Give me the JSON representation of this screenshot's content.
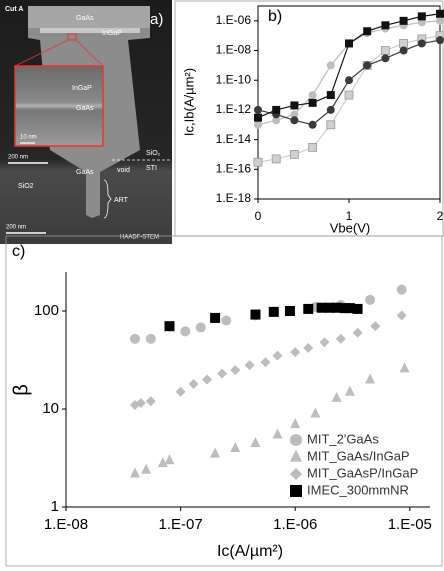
{
  "image_panel": {
    "labels": [
      "Cut A",
      "a)",
      "GaAs",
      "InGaP",
      "InGaP",
      "GaAs",
      "10 nm",
      "200 nm",
      "GaAs",
      "void",
      "SiO₂",
      "STI",
      "SiO2",
      "ART",
      "200 nm",
      "HAADF-STEM"
    ]
  },
  "chart_data": [
    {
      "type": "line",
      "panel_label": "b)",
      "x_label": "Vbe(V)",
      "y_label": "Ic,Ib(A/µm²)",
      "log_y": true,
      "x": [
        0,
        0.2,
        0.4,
        0.6,
        0.8,
        1.0,
        1.2,
        1.4,
        1.6,
        1.8,
        2.0
      ],
      "series": [
        {
          "color": "#bdbdbd",
          "marker": "circle",
          "values": [
            1e-13,
            2e-13,
            5e-13,
            1e-11,
            1e-09,
            3e-08,
            1.5e-07,
            3e-07,
            5e-07,
            8e-07,
            1e-06
          ]
        },
        {
          "color": "#cfcfcf",
          "marker": "square",
          "values": [
            3e-16,
            5e-16,
            1e-15,
            3e-15,
            1e-13,
            1e-11,
            1e-09,
            1e-08,
            3e-08,
            6e-08,
            1e-07
          ]
        },
        {
          "color": "#3a3a3a",
          "marker": "circle",
          "values": [
            1e-12,
            5e-13,
            2e-13,
            1e-13,
            1e-12,
            1e-10,
            1e-09,
            3e-09,
            1e-08,
            3e-08,
            5e-08
          ]
        },
        {
          "color": "#111111",
          "marker": "square",
          "values": [
            3e-13,
            1e-12,
            2e-12,
            3e-12,
            1e-11,
            3e-08,
            2e-07,
            5e-07,
            1e-06,
            2e-06,
            3e-06
          ]
        }
      ],
      "xlim": [
        0,
        2
      ],
      "ylim": [
        1e-18,
        1e-05
      ],
      "xticks": [
        0,
        1,
        2
      ],
      "yticks": [
        {
          "value": 1e-18,
          "label": "1.E-18"
        },
        {
          "value": 1e-16,
          "label": "1.E-16"
        },
        {
          "value": 1e-14,
          "label": "1.E-14"
        },
        {
          "value": 1e-12,
          "label": "1.E-12"
        },
        {
          "value": 1e-10,
          "label": "1.E-10"
        },
        {
          "value": 1e-08,
          "label": "1.E-08"
        },
        {
          "value": 1e-06,
          "label": "1.E-06"
        }
      ]
    },
    {
      "type": "scatter",
      "panel_label": "c)",
      "x_label": "Ic(A/µm²)",
      "y_label": "β",
      "log_x": true,
      "log_y": true,
      "series": [
        {
          "name": "MIT_2'GaAs",
          "color": "#bdbdbd",
          "marker": "circle",
          "x": [
            4e-08,
            5.5e-08,
            1.1e-07,
            1.5e-07,
            2.5e-07,
            4.5e-07,
            1.5e-06,
            2.5e-06,
            4.5e-06,
            8.5e-06
          ],
          "y": [
            52,
            52,
            62,
            68,
            80,
            90,
            110,
            115,
            130,
            165
          ]
        },
        {
          "name": "MIT_GaAs/InGaP",
          "color": "#bdbdbd",
          "marker": "triangle",
          "x": [
            4e-08,
            5e-08,
            7e-08,
            8e-08,
            2e-07,
            3e-07,
            4.5e-07,
            7e-07,
            1e-06,
            1.5e-06,
            2.3e-06,
            3e-06,
            4.5e-06,
            9e-06
          ],
          "y": [
            2.2,
            2.4,
            2.8,
            3,
            3.5,
            4,
            4.5,
            5.5,
            7,
            9,
            13,
            15,
            20,
            26
          ]
        },
        {
          "name": "MIT_GaAsP/InGaP",
          "color": "#bdbdbd",
          "marker": "diamond",
          "x": [
            4e-08,
            4.5e-08,
            5.5e-08,
            1e-07,
            1.3e-07,
            1.7e-07,
            2.3e-07,
            3e-07,
            4e-07,
            5.5e-07,
            7e-07,
            1e-06,
            1.3e-06,
            1.8e-06,
            2.5e-06,
            3.5e-06,
            5e-06,
            8.5e-06
          ],
          "y": [
            11,
            11.5,
            12,
            15,
            18,
            20,
            23,
            25,
            28,
            30,
            35,
            38,
            42,
            48,
            52,
            60,
            70,
            90
          ]
        },
        {
          "name": "IMEC_300mmNR",
          "color": "#000000",
          "marker": "square",
          "x": [
            8e-08,
            2e-07,
            4.5e-07,
            6.5e-07,
            9e-07,
            1.3e-06,
            1.7e-06,
            2e-06,
            2.3e-06,
            2.7e-06,
            3e-06,
            3.5e-06
          ],
          "y": [
            70,
            85,
            92,
            98,
            100,
            105,
            108,
            108,
            108,
            107,
            107,
            105
          ]
        }
      ],
      "xlim": [
        1e-08,
        1.5e-05
      ],
      "ylim": [
        1,
        250
      ],
      "xticks": [
        {
          "value": 1e-08,
          "label": "1.E-08"
        },
        {
          "value": 1e-07,
          "label": "1.E-07"
        },
        {
          "value": 1e-06,
          "label": "1.E-06"
        },
        {
          "value": 1e-05,
          "label": "1.E-05"
        }
      ],
      "yticks": [
        1,
        10,
        100
      ],
      "legend": "lower-right"
    }
  ]
}
